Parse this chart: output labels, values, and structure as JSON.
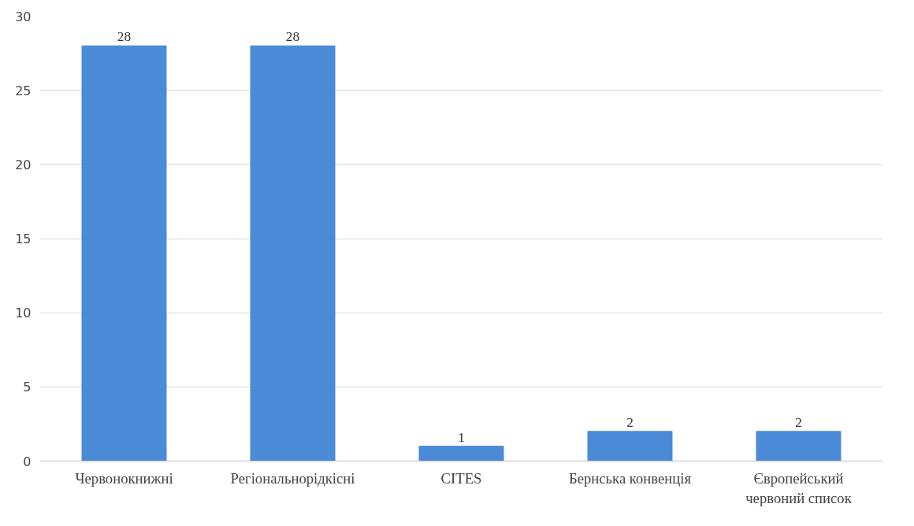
{
  "chart_data": {
    "type": "bar",
    "categories": [
      "Червонокнижні",
      "Регіональнорідкісні",
      "CITES",
      "Бернська конвенція",
      "Європейський червоний список"
    ],
    "values": [
      28,
      28,
      1,
      2,
      2
    ],
    "color": "#4a8ad6",
    "ylim": [
      0,
      30
    ],
    "yticks": [
      0,
      5,
      10,
      15,
      20,
      25,
      30
    ],
    "grid": "y",
    "data_labels": true
  }
}
